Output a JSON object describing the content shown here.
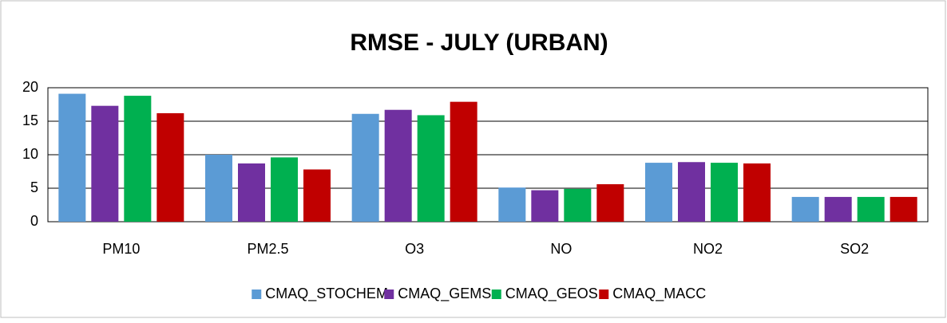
{
  "chart_data": {
    "type": "bar",
    "title": "RMSE - JULY (URBAN)",
    "categories": [
      "PM10",
      "PM2.5",
      "O3",
      "NO",
      "NO2",
      "SO2"
    ],
    "series": [
      {
        "name": "CMAQ_STOCHEM",
        "color": "#5b9bd5",
        "values": [
          19.1,
          10.0,
          16.1,
          5.1,
          8.8,
          3.7
        ]
      },
      {
        "name": "CMAQ_GEMS",
        "color": "#7030a0",
        "values": [
          17.3,
          8.7,
          16.7,
          4.7,
          8.9,
          3.7
        ]
      },
      {
        "name": "CMAQ_GEOS",
        "color": "#00b050",
        "values": [
          18.8,
          9.6,
          15.9,
          4.9,
          8.8,
          3.7
        ]
      },
      {
        "name": "CMAQ_MACC",
        "color": "#c00000",
        "values": [
          16.2,
          7.8,
          17.9,
          5.6,
          8.7,
          3.7
        ]
      }
    ],
    "ylim": [
      0,
      20
    ],
    "yticks": [
      0,
      5,
      10,
      15,
      20
    ],
    "grid": true,
    "legend": "bottom"
  }
}
